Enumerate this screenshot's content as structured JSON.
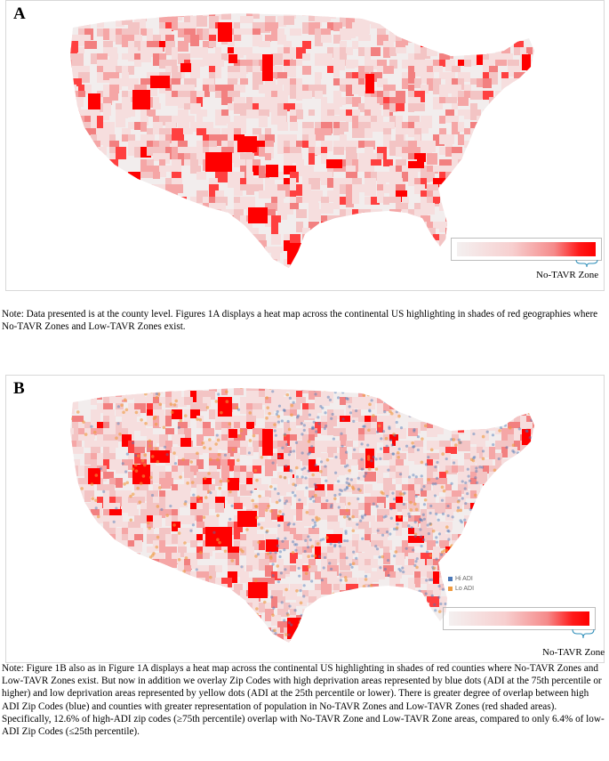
{
  "panel_a": {
    "letter": "A",
    "legend_label": "No-TAVR Zone"
  },
  "panel_b": {
    "letter": "B",
    "legend_label": "No-TAVR Zone",
    "adi_legend": [
      {
        "label": "Hi ADI",
        "color": "#4a78b8"
      },
      {
        "label": "Lo ADI",
        "color": "#f09a3e"
      }
    ]
  },
  "notes": {
    "a": "Note: Data presented is at the county level.  Figures 1A displays a heat map across the continental US highlighting in shades of red geographies where No-TAVR Zones and Low-TAVR Zones exist.",
    "b": "Note: Figure 1B also as in Figure 1A displays a heat map across the continental US highlighting in shades of red counties where No-TAVR Zones and Low-TAVR Zones exist. But now in addition we overlay Zip Codes with high deprivation areas represented by blue dots (ADI at the 75th percentile or higher) and low deprivation areas represented by yellow dots (ADI at the 25th percentile or lower). There is greater degree of overlap between high ADI Zip Codes (blue) and counties with greater representation of population in No-TAVR Zones and Low-TAVR Zones (red shaded areas). Specifically, 12.6% of high-ADI zip codes (≥75th percentile) overlap with No-TAVR Zone and Low-TAVR Zone areas, compared to only 6.4% of low-ADI Zip Codes (≤25th percentile)."
  },
  "colors": {
    "no_tavr": "#ff0000",
    "low_tavr": "#f7b3b3",
    "base": "#f2eded"
  }
}
